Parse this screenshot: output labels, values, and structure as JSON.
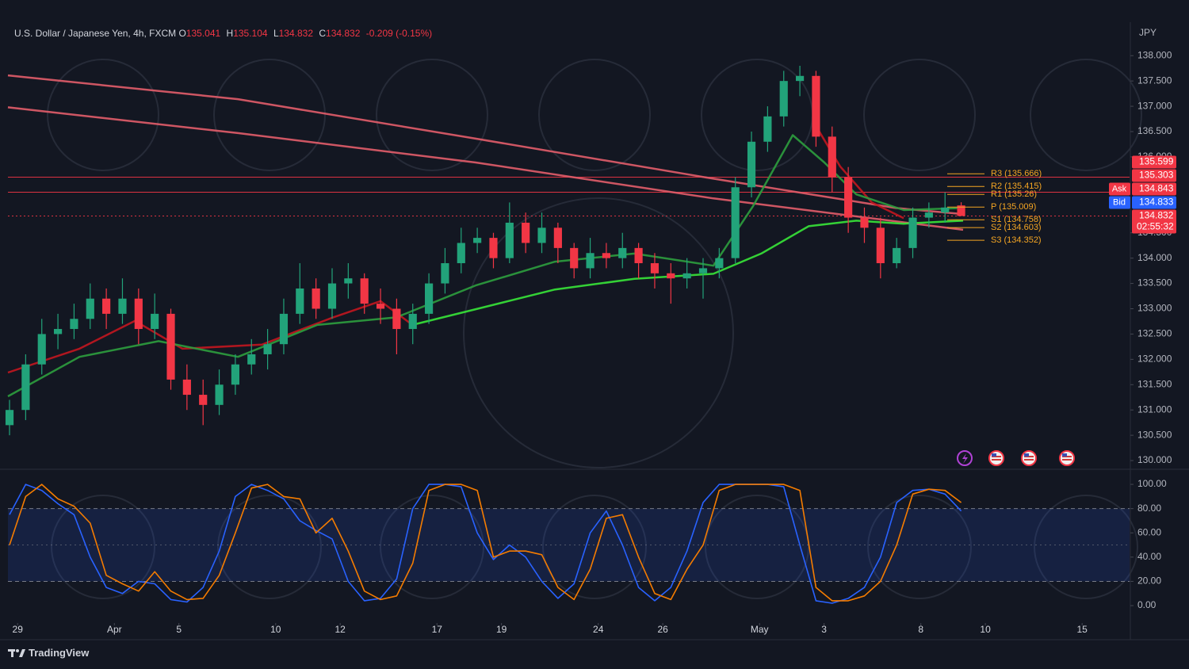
{
  "header": {
    "symbol": "U.S. Dollar / Japanese Yen, 4h, FXCM",
    "ohlc": [
      {
        "key": "O",
        "value": 135.041
      },
      {
        "key": "H",
        "value": 135.104
      },
      {
        "key": "L",
        "value": 134.832
      },
      {
        "key": "C",
        "value": 134.832
      }
    ],
    "change": "-0.209 (-0.15%)",
    "currency": "JPY"
  },
  "chart_data": [
    {
      "type": "candlestick",
      "up_color": "#22a37a",
      "down_color": "#f23645",
      "x": [
        -0.25,
        0.25,
        0.75,
        1.25,
        1.75,
        2.25,
        2.75,
        3.25,
        3.75,
        4.25,
        4.75,
        5.25,
        5.75,
        6.25,
        6.75,
        7.25,
        7.75,
        8.25,
        8.75,
        9.25,
        9.75,
        10.25,
        10.75,
        11.25,
        11.75,
        12.25,
        12.75,
        13.25,
        13.75,
        14.25,
        14.75,
        15.25,
        15.75,
        16.25,
        16.75,
        17.25,
        17.75,
        18.25,
        18.75,
        19.25,
        19.75,
        20.25,
        20.75,
        21.25,
        21.75,
        22.25,
        22.75,
        23.25,
        23.75,
        24.25,
        24.75,
        25.25,
        25.75,
        26.25,
        26.75,
        27.25,
        27.75,
        28.25,
        28.75,
        29.25
      ],
      "open": [
        130.7,
        131.0,
        131.9,
        132.5,
        132.6,
        132.8,
        133.2,
        132.9,
        133.2,
        132.6,
        132.9,
        131.6,
        131.3,
        131.1,
        131.5,
        131.9,
        132.1,
        132.3,
        132.9,
        133.4,
        133.0,
        133.5,
        133.6,
        133.1,
        133.0,
        132.6,
        132.9,
        133.5,
        133.9,
        134.3,
        134.4,
        134.0,
        134.7,
        134.3,
        134.6,
        134.2,
        133.8,
        134.1,
        134.0,
        134.2,
        133.9,
        133.7,
        133.6,
        133.7,
        133.8,
        134.0,
        135.4,
        136.3,
        136.8,
        137.5,
        137.6,
        136.4,
        135.6,
        134.8,
        134.6,
        133.9,
        134.2,
        134.8,
        134.9,
        135.041
      ],
      "high": [
        131.2,
        132.1,
        132.8,
        132.9,
        133.1,
        133.5,
        133.4,
        133.6,
        133.4,
        133.3,
        133.0,
        131.9,
        131.6,
        131.8,
        132.1,
        132.4,
        132.6,
        133.2,
        133.9,
        133.6,
        133.8,
        133.9,
        133.7,
        133.4,
        133.2,
        133.1,
        133.7,
        134.2,
        134.6,
        134.6,
        134.5,
        135.1,
        134.9,
        134.9,
        134.7,
        134.3,
        134.4,
        134.3,
        134.5,
        134.3,
        134.1,
        133.9,
        134.0,
        134.0,
        134.2,
        135.6,
        136.5,
        137.0,
        137.7,
        137.8,
        137.7,
        136.6,
        135.8,
        135.0,
        134.8,
        134.4,
        135.0,
        135.1,
        135.3,
        135.104
      ],
      "low": [
        130.5,
        130.8,
        131.7,
        132.2,
        132.4,
        132.6,
        132.6,
        132.7,
        132.3,
        132.4,
        131.4,
        131.0,
        130.7,
        130.9,
        131.3,
        131.7,
        131.8,
        132.1,
        132.7,
        132.8,
        132.8,
        133.2,
        132.9,
        132.7,
        132.1,
        132.3,
        132.7,
        133.3,
        133.7,
        134.1,
        133.8,
        133.9,
        134.1,
        134.1,
        133.9,
        133.6,
        133.6,
        133.8,
        133.8,
        133.6,
        133.4,
        133.1,
        133.4,
        133.2,
        133.6,
        133.9,
        135.2,
        136.1,
        136.6,
        137.2,
        136.2,
        135.3,
        134.5,
        134.3,
        133.6,
        133.8,
        134.0,
        134.6,
        134.7,
        134.832
      ],
      "close": [
        131.0,
        131.9,
        132.5,
        132.6,
        132.8,
        133.2,
        132.9,
        133.2,
        132.6,
        132.9,
        131.6,
        131.3,
        131.1,
        131.5,
        131.9,
        132.1,
        132.3,
        132.9,
        133.4,
        133.0,
        133.5,
        133.6,
        133.1,
        133.0,
        132.6,
        132.9,
        133.5,
        133.9,
        134.3,
        134.4,
        134.0,
        134.7,
        134.3,
        134.6,
        134.2,
        133.8,
        134.1,
        134.0,
        134.2,
        133.9,
        133.7,
        133.6,
        133.7,
        133.8,
        134.0,
        135.4,
        136.3,
        136.8,
        137.5,
        137.6,
        136.4,
        135.6,
        134.8,
        134.6,
        133.9,
        134.2,
        134.8,
        134.9,
        135.0,
        134.832
      ],
      "overlays": [
        {
          "color": "#e35d6a",
          "x": [
            -0.3,
            6.83,
            14.2,
            21.57,
            27.22,
            29.31
          ],
          "values": [
            137.61,
            137.14,
            136.36,
            135.57,
            134.99,
            134.87
          ]
        },
        {
          "color": "#e35d6a",
          "x": [
            -0.3,
            6.83,
            14.2,
            21.57,
            29.31
          ],
          "values": [
            136.98,
            136.47,
            135.89,
            135.18,
            134.56
          ]
        },
        {
          "color": "#c3161f",
          "x": [
            -0.3,
            1.92,
            3.64,
            5.11,
            7.57,
            9.78,
            11.25,
            12.24
          ],
          "values": [
            131.74,
            132.21,
            132.76,
            132.21,
            132.29,
            132.83,
            133.15,
            132.68
          ]
        },
        {
          "color": "#c3161f",
          "x": [
            24.77,
            25.5,
            26.48,
            27.47
          ],
          "values": [
            136.59,
            135.81,
            135.1,
            134.79
          ]
        },
        {
          "color": "#2e9e3e",
          "x": [
            -0.3,
            1.92,
            4.37,
            6.83,
            9.29,
            11.74,
            14.2,
            16.66,
            19.12,
            21.57,
            22.8,
            24.03,
            25.01,
            26.0,
            27.47,
            29.31
          ],
          "values": [
            131.27,
            132.05,
            132.36,
            132.05,
            132.68,
            132.83,
            133.46,
            133.93,
            134.09,
            133.85,
            135.03,
            136.43,
            135.89,
            135.26,
            134.95,
            134.99
          ]
        },
        {
          "color": "#39e639",
          "x": [
            12.24,
            14.2,
            16.66,
            19.12,
            21.57,
            23.05,
            24.52,
            26.0,
            27.47,
            29.31
          ],
          "values": [
            132.68,
            132.99,
            133.38,
            133.59,
            133.69,
            134.09,
            134.63,
            134.74,
            134.68,
            134.74
          ]
        }
      ],
      "pivots": [
        {
          "label": "R3 (135.666)",
          "value": 135.666
        },
        {
          "label": "R2 (135.415)",
          "value": 135.415
        },
        {
          "label": "R1 (135.26)",
          "value": 135.26
        },
        {
          "label": "P (135.009)",
          "value": 135.009
        },
        {
          "label": "S1 (134.758)",
          "value": 134.758
        },
        {
          "label": "S2 (134.603)",
          "value": 134.603
        },
        {
          "label": "S3 (134.352)",
          "value": 134.352
        }
      ],
      "pivot_color": "#f5a623",
      "price_labels": [
        {
          "value": 135.599,
          "color": "#f23645",
          "line": "solid"
        },
        {
          "value": 135.303,
          "color": "#f23645",
          "line": "solid"
        },
        {
          "value": 134.843,
          "color": "#f23645",
          "tag": "Ask"
        },
        {
          "value": 134.833,
          "color": "#2962ff",
          "tag": "Bid"
        },
        {
          "value": 134.832,
          "color": "#f23645",
          "line": "dotted",
          "countdown": "02:55:32"
        }
      ],
      "xlim": [
        -0.3,
        34.47
      ],
      "xticks": [
        {
          "value": 0,
          "label": "29"
        },
        {
          "value": 3,
          "label": "Apr"
        },
        {
          "value": 5,
          "label": "5"
        },
        {
          "value": 8,
          "label": "10"
        },
        {
          "value": 10,
          "label": "12"
        },
        {
          "value": 13,
          "label": "17"
        },
        {
          "value": 15,
          "label": "19"
        },
        {
          "value": 18,
          "label": "24"
        },
        {
          "value": 20,
          "label": "26"
        },
        {
          "value": 23,
          "label": "May"
        },
        {
          "value": 25,
          "label": "3"
        },
        {
          "value": 28,
          "label": "8"
        },
        {
          "value": 30,
          "label": "10"
        },
        {
          "value": 33,
          "label": "15"
        }
      ],
      "ylim": [
        129.86,
        138.63
      ],
      "yticks": [
        {
          "value": 130,
          "label": "130.000"
        },
        {
          "value": 130.5,
          "label": "130.500"
        },
        {
          "value": 131,
          "label": "131.000"
        },
        {
          "value": 131.5,
          "label": "131.500"
        },
        {
          "value": 132,
          "label": "132.000"
        },
        {
          "value": 132.5,
          "label": "132.500"
        },
        {
          "value": 133,
          "label": "133.000"
        },
        {
          "value": 133.5,
          "label": "133.500"
        },
        {
          "value": 134,
          "label": "134.000"
        },
        {
          "value": 134.5,
          "label": "134.500"
        },
        {
          "value": 136,
          "label": "136.000"
        },
        {
          "value": 136.5,
          "label": "136.500"
        },
        {
          "value": 137,
          "label": "137.000"
        },
        {
          "value": 137.5,
          "label": "137.500"
        },
        {
          "value": 138,
          "label": "138.000"
        }
      ]
    },
    {
      "type": "line",
      "x": [
        -0.25,
        0.25,
        0.75,
        1.25,
        1.75,
        2.25,
        2.75,
        3.25,
        3.75,
        4.25,
        4.75,
        5.25,
        5.75,
        6.25,
        6.75,
        7.25,
        7.75,
        8.25,
        8.75,
        9.25,
        9.75,
        10.25,
        10.75,
        11.25,
        11.75,
        12.25,
        12.75,
        13.25,
        13.75,
        14.25,
        14.75,
        15.25,
        15.75,
        16.25,
        16.75,
        17.25,
        17.75,
        18.25,
        18.75,
        19.25,
        19.75,
        20.25,
        20.75,
        21.25,
        21.75,
        22.25,
        22.75,
        23.25,
        23.75,
        24.25,
        24.75,
        25.25,
        25.75,
        26.25,
        26.75,
        27.25,
        27.75,
        28.25,
        28.75,
        29.25
      ],
      "xlim": [
        -0.3,
        34.47
      ],
      "series": [
        {
          "color": "#2962ff",
          "values": [
            75,
            100,
            95,
            84,
            75,
            40,
            15,
            10,
            20,
            18,
            5,
            3,
            15,
            45,
            90,
            100,
            95,
            88,
            70,
            62,
            55,
            20,
            4,
            6,
            22,
            80,
            100,
            100,
            98,
            60,
            38,
            50,
            40,
            20,
            6,
            18,
            60,
            78,
            50,
            15,
            4,
            15,
            45,
            85,
            100,
            100,
            100,
            100,
            98,
            50,
            4,
            2,
            6,
            15,
            40,
            85,
            95,
            96,
            92,
            78
          ]
        },
        {
          "color": "#f57c00",
          "values": [
            50,
            90,
            100,
            88,
            82,
            68,
            25,
            18,
            12,
            28,
            12,
            5,
            6,
            25,
            60,
            97,
            100,
            90,
            88,
            60,
            72,
            45,
            12,
            5,
            8,
            35,
            95,
            100,
            100,
            95,
            40,
            45,
            45,
            42,
            15,
            5,
            30,
            72,
            75,
            40,
            10,
            5,
            30,
            50,
            95,
            100,
            100,
            100,
            100,
            95,
            15,
            4,
            4,
            8,
            20,
            50,
            92,
            96,
            95,
            85
          ]
        }
      ],
      "band": [
        20,
        80
      ],
      "midline": 50,
      "ylim": [
        -13.7,
        110.5
      ],
      "yticks": [
        {
          "value": 0,
          "label": "0.00"
        },
        {
          "value": 20,
          "label": "20.00"
        },
        {
          "value": 40,
          "label": "40.00"
        },
        {
          "value": 60,
          "label": "60.00"
        },
        {
          "value": 80,
          "label": "80.00"
        },
        {
          "value": 100,
          "label": "100.00"
        }
      ]
    }
  ],
  "footer": {
    "brand": "TradingView"
  }
}
